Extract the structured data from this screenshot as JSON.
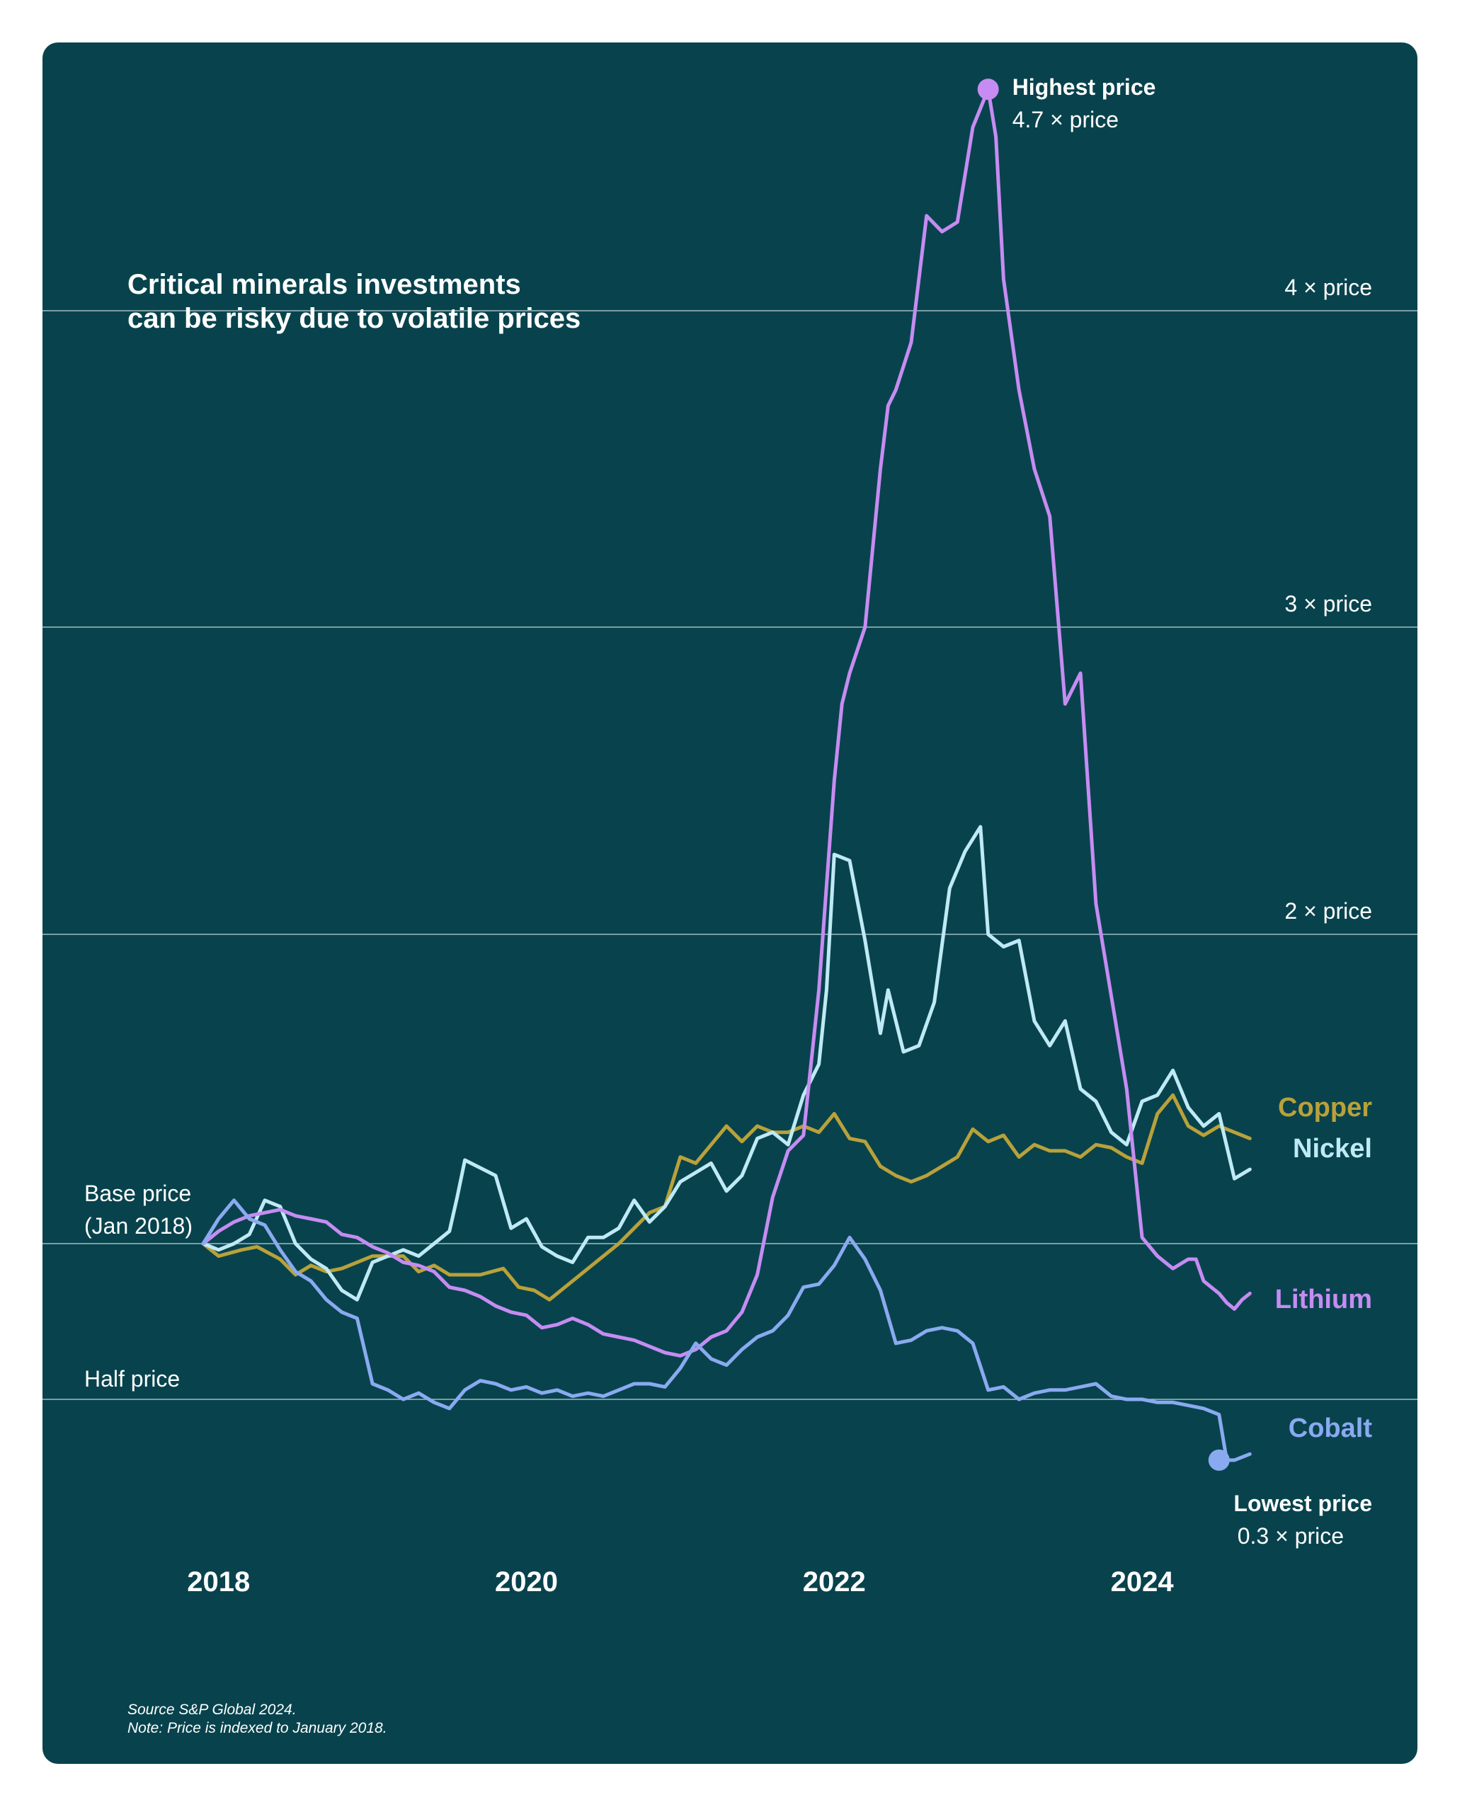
{
  "chart_data": {
    "type": "line",
    "title": [
      "Critical minerals investments",
      "can be risky due to volatile prices"
    ],
    "notes": [
      "Source S&P Global 2024.",
      "Note: Price is indexed to January 2018."
    ],
    "x_ticks": [
      2018,
      2020,
      2022,
      2024
    ],
    "x_tick_labels": [
      "2018",
      "2020",
      "2022",
      "2024"
    ],
    "xlim": [
      2017.9,
      2024.8
    ],
    "ylim": [
      0.3,
      4.8
    ],
    "gridlines": [
      {
        "value": 4,
        "label": "4 × price",
        "label_side": "right"
      },
      {
        "value": 3,
        "label": "3 × price",
        "label_side": "right"
      },
      {
        "value": 2,
        "label": "2 × price",
        "label_side": "right"
      },
      {
        "value": 1,
        "label_lines": [
          "Base price",
          "(Jan 2018)"
        ],
        "label_side": "left"
      },
      {
        "value": 0.5,
        "label": "Half price",
        "label_side": "left"
      }
    ],
    "annotations": [
      {
        "name": "highest",
        "series": "Lithium",
        "x": 2023.0,
        "y": 4.7,
        "label": "Highest price",
        "value_label": "4.7 × price",
        "position": "right-of-point"
      },
      {
        "name": "lowest",
        "series": "Cobalt",
        "x": 2024.5,
        "y": 0.3,
        "label": "Lowest price",
        "value_label": "0.3 × price",
        "position": "below-point"
      }
    ],
    "series": [
      {
        "name": "Copper",
        "color": "#b9a13a",
        "points": [
          [
            2017.9,
            1.0
          ],
          [
            2018.0,
            0.96
          ],
          [
            2018.15,
            0.98
          ],
          [
            2018.25,
            0.99
          ],
          [
            2018.4,
            0.95
          ],
          [
            2018.5,
            0.9
          ],
          [
            2018.6,
            0.93
          ],
          [
            2018.7,
            0.91
          ],
          [
            2018.8,
            0.92
          ],
          [
            2018.9,
            0.94
          ],
          [
            2019.0,
            0.96
          ],
          [
            2019.2,
            0.96
          ],
          [
            2019.3,
            0.91
          ],
          [
            2019.4,
            0.93
          ],
          [
            2019.5,
            0.9
          ],
          [
            2019.7,
            0.9
          ],
          [
            2019.85,
            0.92
          ],
          [
            2019.95,
            0.86
          ],
          [
            2020.05,
            0.85
          ],
          [
            2020.15,
            0.82
          ],
          [
            2020.3,
            0.88
          ],
          [
            2020.5,
            0.96
          ],
          [
            2020.6,
            1.0
          ],
          [
            2020.7,
            1.05
          ],
          [
            2020.8,
            1.1
          ],
          [
            2020.9,
            1.12
          ],
          [
            2021.0,
            1.28
          ],
          [
            2021.1,
            1.26
          ],
          [
            2021.2,
            1.32
          ],
          [
            2021.3,
            1.38
          ],
          [
            2021.4,
            1.33
          ],
          [
            2021.5,
            1.38
          ],
          [
            2021.6,
            1.36
          ],
          [
            2021.7,
            1.36
          ],
          [
            2021.8,
            1.38
          ],
          [
            2021.9,
            1.36
          ],
          [
            2022.0,
            1.42
          ],
          [
            2022.1,
            1.34
          ],
          [
            2022.2,
            1.33
          ],
          [
            2022.3,
            1.25
          ],
          [
            2022.4,
            1.22
          ],
          [
            2022.5,
            1.2
          ],
          [
            2022.6,
            1.22
          ],
          [
            2022.7,
            1.25
          ],
          [
            2022.8,
            1.28
          ],
          [
            2022.9,
            1.37
          ],
          [
            2023.0,
            1.33
          ],
          [
            2023.1,
            1.35
          ],
          [
            2023.2,
            1.28
          ],
          [
            2023.3,
            1.32
          ],
          [
            2023.4,
            1.3
          ],
          [
            2023.5,
            1.3
          ],
          [
            2023.6,
            1.28
          ],
          [
            2023.7,
            1.32
          ],
          [
            2023.8,
            1.31
          ],
          [
            2023.9,
            1.28
          ],
          [
            2024.0,
            1.26
          ],
          [
            2024.1,
            1.42
          ],
          [
            2024.2,
            1.48
          ],
          [
            2024.3,
            1.38
          ],
          [
            2024.4,
            1.35
          ],
          [
            2024.5,
            1.38
          ],
          [
            2024.6,
            1.36
          ],
          [
            2024.7,
            1.34
          ]
        ]
      },
      {
        "name": "Nickel",
        "color": "#bfeaf5",
        "points": [
          [
            2017.9,
            1.0
          ],
          [
            2018.0,
            0.98
          ],
          [
            2018.1,
            1.0
          ],
          [
            2018.2,
            1.03
          ],
          [
            2018.3,
            1.14
          ],
          [
            2018.4,
            1.12
          ],
          [
            2018.5,
            1.0
          ],
          [
            2018.6,
            0.95
          ],
          [
            2018.7,
            0.92
          ],
          [
            2018.8,
            0.85
          ],
          [
            2018.9,
            0.82
          ],
          [
            2019.0,
            0.94
          ],
          [
            2019.2,
            0.98
          ],
          [
            2019.3,
            0.96
          ],
          [
            2019.4,
            1.0
          ],
          [
            2019.5,
            1.04
          ],
          [
            2019.55,
            1.15
          ],
          [
            2019.6,
            1.27
          ],
          [
            2019.8,
            1.22
          ],
          [
            2019.9,
            1.05
          ],
          [
            2020.0,
            1.08
          ],
          [
            2020.1,
            0.99
          ],
          [
            2020.2,
            0.96
          ],
          [
            2020.3,
            0.94
          ],
          [
            2020.4,
            1.02
          ],
          [
            2020.5,
            1.02
          ],
          [
            2020.6,
            1.05
          ],
          [
            2020.7,
            1.14
          ],
          [
            2020.8,
            1.07
          ],
          [
            2020.9,
            1.12
          ],
          [
            2021.0,
            1.2
          ],
          [
            2021.1,
            1.23
          ],
          [
            2021.2,
            1.26
          ],
          [
            2021.3,
            1.17
          ],
          [
            2021.4,
            1.22
          ],
          [
            2021.5,
            1.34
          ],
          [
            2021.6,
            1.36
          ],
          [
            2021.7,
            1.32
          ],
          [
            2021.8,
            1.48
          ],
          [
            2021.9,
            1.58
          ],
          [
            2021.95,
            1.82
          ],
          [
            2022.0,
            2.26
          ],
          [
            2022.1,
            2.24
          ],
          [
            2022.2,
            1.98
          ],
          [
            2022.3,
            1.68
          ],
          [
            2022.35,
            1.82
          ],
          [
            2022.45,
            1.62
          ],
          [
            2022.55,
            1.64
          ],
          [
            2022.65,
            1.78
          ],
          [
            2022.75,
            2.15
          ],
          [
            2022.85,
            2.27
          ],
          [
            2022.95,
            2.35
          ],
          [
            2023.0,
            2.0
          ],
          [
            2023.1,
            1.96
          ],
          [
            2023.2,
            1.98
          ],
          [
            2023.3,
            1.72
          ],
          [
            2023.4,
            1.64
          ],
          [
            2023.5,
            1.72
          ],
          [
            2023.6,
            1.5
          ],
          [
            2023.7,
            1.46
          ],
          [
            2023.8,
            1.36
          ],
          [
            2023.9,
            1.32
          ],
          [
            2024.0,
            1.46
          ],
          [
            2024.1,
            1.48
          ],
          [
            2024.2,
            1.56
          ],
          [
            2024.3,
            1.44
          ],
          [
            2024.4,
            1.38
          ],
          [
            2024.5,
            1.42
          ],
          [
            2024.6,
            1.21
          ],
          [
            2024.7,
            1.24
          ]
        ]
      },
      {
        "name": "Lithium",
        "color": "#c68cf2",
        "points": [
          [
            2017.9,
            1.0
          ],
          [
            2018.0,
            1.04
          ],
          [
            2018.1,
            1.07
          ],
          [
            2018.2,
            1.09
          ],
          [
            2018.3,
            1.1
          ],
          [
            2018.4,
            1.11
          ],
          [
            2018.5,
            1.09
          ],
          [
            2018.6,
            1.08
          ],
          [
            2018.7,
            1.07
          ],
          [
            2018.8,
            1.03
          ],
          [
            2018.9,
            1.02
          ],
          [
            2019.0,
            0.99
          ],
          [
            2019.1,
            0.97
          ],
          [
            2019.2,
            0.94
          ],
          [
            2019.3,
            0.93
          ],
          [
            2019.4,
            0.91
          ],
          [
            2019.5,
            0.86
          ],
          [
            2019.6,
            0.85
          ],
          [
            2019.7,
            0.83
          ],
          [
            2019.8,
            0.8
          ],
          [
            2019.9,
            0.78
          ],
          [
            2020.0,
            0.77
          ],
          [
            2020.1,
            0.73
          ],
          [
            2020.2,
            0.74
          ],
          [
            2020.3,
            0.76
          ],
          [
            2020.4,
            0.74
          ],
          [
            2020.5,
            0.71
          ],
          [
            2020.6,
            0.7
          ],
          [
            2020.7,
            0.69
          ],
          [
            2020.8,
            0.67
          ],
          [
            2020.9,
            0.65
          ],
          [
            2021.0,
            0.64
          ],
          [
            2021.1,
            0.66
          ],
          [
            2021.2,
            0.7
          ],
          [
            2021.3,
            0.72
          ],
          [
            2021.4,
            0.78
          ],
          [
            2021.5,
            0.9
          ],
          [
            2021.6,
            1.15
          ],
          [
            2021.7,
            1.3
          ],
          [
            2021.8,
            1.35
          ],
          [
            2021.9,
            1.82
          ],
          [
            2022.0,
            2.5
          ],
          [
            2022.05,
            2.75
          ],
          [
            2022.1,
            2.85
          ],
          [
            2022.2,
            3.0
          ],
          [
            2022.3,
            3.5
          ],
          [
            2022.35,
            3.7
          ],
          [
            2022.4,
            3.75
          ],
          [
            2022.5,
            3.9
          ],
          [
            2022.6,
            4.3
          ],
          [
            2022.7,
            4.25
          ],
          [
            2022.8,
            4.28
          ],
          [
            2022.9,
            4.58
          ],
          [
            2023.0,
            4.7
          ],
          [
            2023.05,
            4.55
          ],
          [
            2023.1,
            4.1
          ],
          [
            2023.2,
            3.75
          ],
          [
            2023.3,
            3.5
          ],
          [
            2023.4,
            3.35
          ],
          [
            2023.5,
            2.75
          ],
          [
            2023.6,
            2.85
          ],
          [
            2023.7,
            2.1
          ],
          [
            2023.8,
            1.8
          ],
          [
            2023.9,
            1.5
          ],
          [
            2024.0,
            1.02
          ],
          [
            2024.1,
            0.96
          ],
          [
            2024.2,
            0.92
          ],
          [
            2024.3,
            0.95
          ],
          [
            2024.35,
            0.95
          ],
          [
            2024.4,
            0.88
          ],
          [
            2024.5,
            0.84
          ],
          [
            2024.55,
            0.81
          ],
          [
            2024.6,
            0.79
          ],
          [
            2024.65,
            0.82
          ],
          [
            2024.7,
            0.84
          ]
        ]
      },
      {
        "name": "Cobalt",
        "color": "#8aaaf0",
        "points": [
          [
            2017.9,
            1.0
          ],
          [
            2018.0,
            1.08
          ],
          [
            2018.1,
            1.14
          ],
          [
            2018.2,
            1.08
          ],
          [
            2018.3,
            1.06
          ],
          [
            2018.4,
            0.98
          ],
          [
            2018.5,
            0.91
          ],
          [
            2018.6,
            0.88
          ],
          [
            2018.7,
            0.82
          ],
          [
            2018.8,
            0.78
          ],
          [
            2018.9,
            0.76
          ],
          [
            2019.0,
            0.55
          ],
          [
            2019.1,
            0.53
          ],
          [
            2019.2,
            0.5
          ],
          [
            2019.3,
            0.52
          ],
          [
            2019.4,
            0.49
          ],
          [
            2019.5,
            0.47
          ],
          [
            2019.6,
            0.53
          ],
          [
            2019.7,
            0.56
          ],
          [
            2019.8,
            0.55
          ],
          [
            2019.9,
            0.53
          ],
          [
            2020.0,
            0.54
          ],
          [
            2020.1,
            0.52
          ],
          [
            2020.2,
            0.53
          ],
          [
            2020.3,
            0.51
          ],
          [
            2020.4,
            0.52
          ],
          [
            2020.5,
            0.51
          ],
          [
            2020.6,
            0.53
          ],
          [
            2020.7,
            0.55
          ],
          [
            2020.8,
            0.55
          ],
          [
            2020.9,
            0.54
          ],
          [
            2021.0,
            0.6
          ],
          [
            2021.1,
            0.68
          ],
          [
            2021.2,
            0.63
          ],
          [
            2021.3,
            0.61
          ],
          [
            2021.4,
            0.66
          ],
          [
            2021.5,
            0.7
          ],
          [
            2021.6,
            0.72
          ],
          [
            2021.7,
            0.77
          ],
          [
            2021.8,
            0.86
          ],
          [
            2021.9,
            0.87
          ],
          [
            2022.0,
            0.93
          ],
          [
            2022.1,
            1.02
          ],
          [
            2022.2,
            0.95
          ],
          [
            2022.3,
            0.85
          ],
          [
            2022.4,
            0.68
          ],
          [
            2022.5,
            0.69
          ],
          [
            2022.6,
            0.72
          ],
          [
            2022.7,
            0.73
          ],
          [
            2022.8,
            0.72
          ],
          [
            2022.9,
            0.68
          ],
          [
            2023.0,
            0.53
          ],
          [
            2023.1,
            0.54
          ],
          [
            2023.2,
            0.5
          ],
          [
            2023.3,
            0.52
          ],
          [
            2023.4,
            0.53
          ],
          [
            2023.5,
            0.53
          ],
          [
            2023.6,
            0.54
          ],
          [
            2023.7,
            0.55
          ],
          [
            2023.8,
            0.51
          ],
          [
            2023.9,
            0.5
          ],
          [
            2024.0,
            0.5
          ],
          [
            2024.1,
            0.49
          ],
          [
            2024.2,
            0.49
          ],
          [
            2024.3,
            0.48
          ],
          [
            2024.4,
            0.47
          ],
          [
            2024.5,
            0.45
          ],
          [
            2024.55,
            0.3
          ],
          [
            2024.6,
            0.3
          ],
          [
            2024.7,
            0.32
          ]
        ]
      }
    ]
  }
}
